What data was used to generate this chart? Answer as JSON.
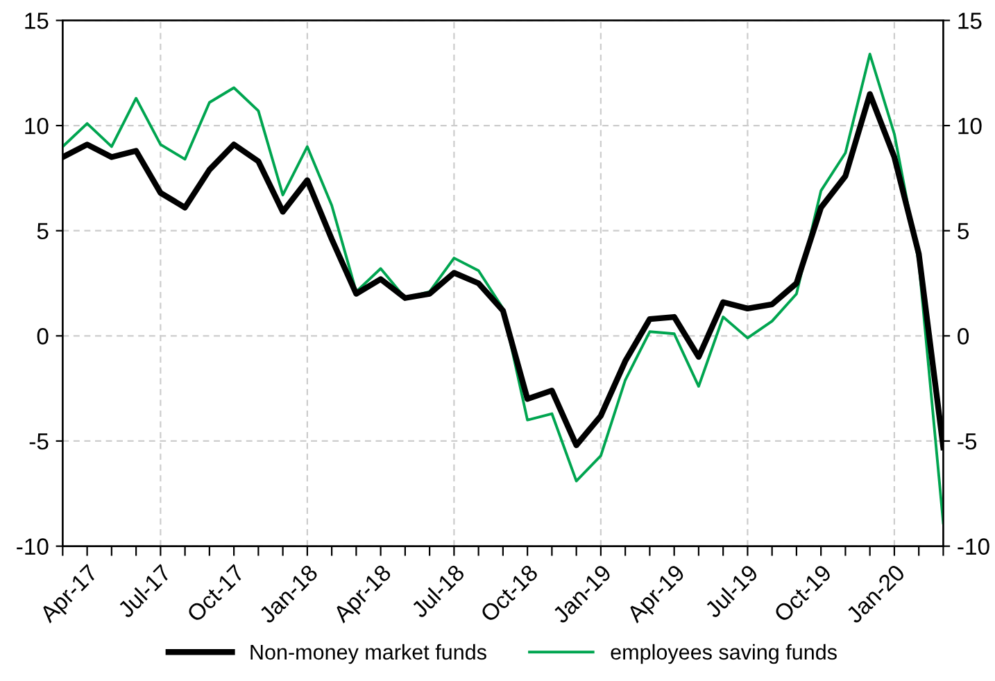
{
  "chart_data": {
    "type": "line",
    "categories": [
      null,
      "Apr-17",
      null,
      null,
      "Jul-17",
      null,
      null,
      "Oct-17",
      null,
      null,
      "Jan-18",
      null,
      null,
      "Apr-18",
      null,
      null,
      "Jul-18",
      null,
      null,
      "Oct-18",
      null,
      null,
      "Jan-19",
      null,
      null,
      "Apr-19",
      null,
      null,
      "Jul-19",
      null,
      null,
      "Oct-19",
      null,
      null,
      "Jan-20",
      null,
      null
    ],
    "series": [
      {
        "name": "Non-money market funds",
        "color": "#000000",
        "values": [
          8.5,
          9.1,
          8.5,
          8.8,
          6.8,
          6.1,
          7.9,
          9.1,
          8.3,
          5.9,
          7.4,
          4.6,
          2.0,
          2.7,
          1.8,
          2.0,
          3.0,
          2.5,
          1.2,
          -3.0,
          -2.6,
          -5.2,
          -3.8,
          -1.2,
          0.8,
          0.9,
          -1.0,
          1.6,
          1.3,
          1.5,
          2.5,
          6.1,
          7.6,
          11.5,
          8.5,
          3.9,
          -5.3
        ]
      },
      {
        "name": "employees saving funds",
        "color": "#00a550",
        "values": [
          9.0,
          10.1,
          9.0,
          11.3,
          9.1,
          8.4,
          11.1,
          11.8,
          10.7,
          6.7,
          9.0,
          6.2,
          2.1,
          3.2,
          1.8,
          2.1,
          3.7,
          3.1,
          1.3,
          -4.0,
          -3.7,
          -6.9,
          -5.7,
          -2.1,
          0.2,
          0.1,
          -2.4,
          0.9,
          -0.1,
          0.7,
          2.0,
          6.9,
          8.7,
          13.4,
          9.6,
          3.5,
          -8.9
        ]
      }
    ],
    "ylim": [
      -10,
      15
    ],
    "yticks": [
      -10,
      -5,
      0,
      5,
      10,
      15
    ],
    "y2lim": [
      -10,
      15
    ],
    "y2ticks": [
      -10,
      -5,
      0,
      5,
      10,
      15
    ],
    "grid": true,
    "legend": "bottom",
    "marker": "none",
    "line_style": "solid"
  }
}
